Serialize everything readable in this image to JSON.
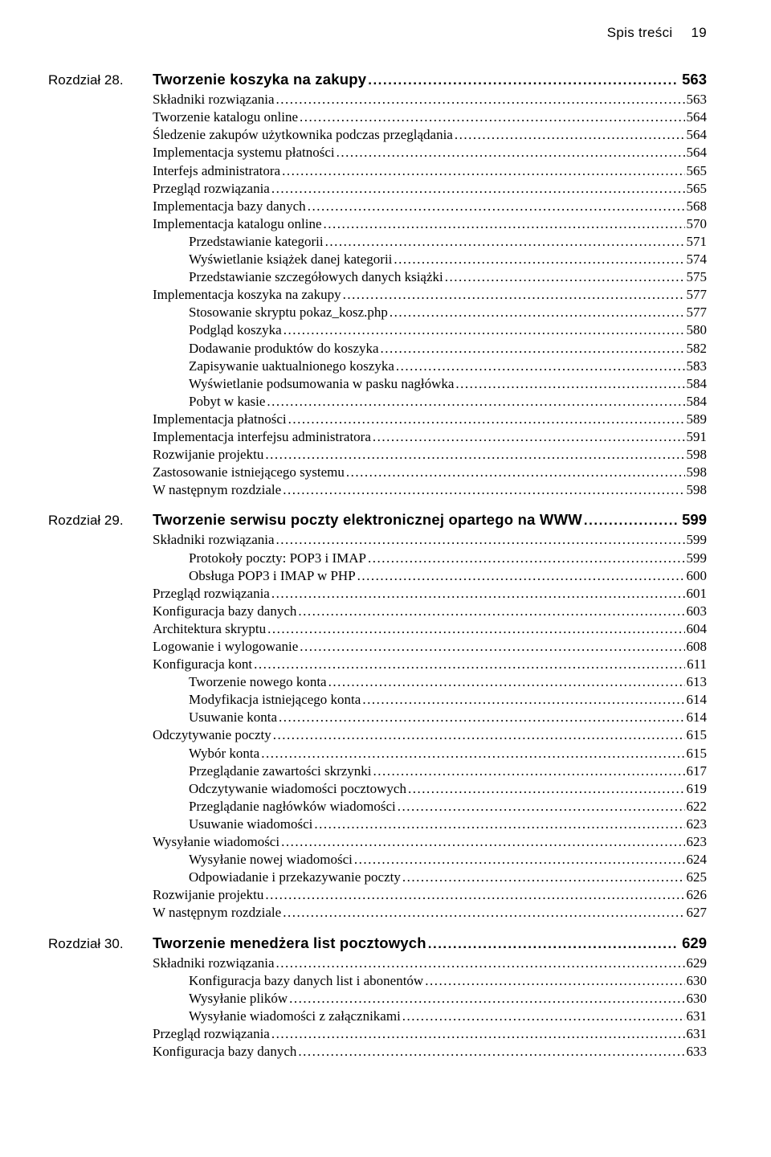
{
  "header": {
    "label": "Spis treści",
    "page": "19"
  },
  "chapters": [
    {
      "label": "Rozdział 28.",
      "title": "Tworzenie koszyka na zakupy",
      "page": "563",
      "entries": [
        {
          "t": "Składniki rozwiązania",
          "p": "563",
          "lvl": 0
        },
        {
          "t": "Tworzenie katalogu online",
          "p": "564",
          "lvl": 0
        },
        {
          "t": "Śledzenie zakupów użytkownika podczas przeglądania",
          "p": "564",
          "lvl": 0
        },
        {
          "t": "Implementacja systemu płatności",
          "p": "564",
          "lvl": 0
        },
        {
          "t": "Interfejs administratora",
          "p": "565",
          "lvl": 0
        },
        {
          "t": "Przegląd rozwiązania",
          "p": "565",
          "lvl": 0
        },
        {
          "t": "Implementacja bazy danych",
          "p": "568",
          "lvl": 0
        },
        {
          "t": "Implementacja katalogu online",
          "p": "570",
          "lvl": 0
        },
        {
          "t": "Przedstawianie kategorii",
          "p": "571",
          "lvl": 1
        },
        {
          "t": "Wyświetlanie książek danej kategorii",
          "p": "574",
          "lvl": 1
        },
        {
          "t": "Przedstawianie szczegółowych danych książki",
          "p": "575",
          "lvl": 1
        },
        {
          "t": "Implementacja koszyka na zakupy",
          "p": "577",
          "lvl": 0
        },
        {
          "t": "Stosowanie skryptu pokaz_kosz.php",
          "p": "577",
          "lvl": 1
        },
        {
          "t": "Podgląd koszyka",
          "p": "580",
          "lvl": 1
        },
        {
          "t": "Dodawanie produktów do koszyka",
          "p": "582",
          "lvl": 1
        },
        {
          "t": "Zapisywanie uaktualnionego koszyka",
          "p": "583",
          "lvl": 1
        },
        {
          "t": "Wyświetlanie podsumowania w pasku nagłówka",
          "p": "584",
          "lvl": 1
        },
        {
          "t": "Pobyt w kasie",
          "p": "584",
          "lvl": 1
        },
        {
          "t": "Implementacja płatności",
          "p": "589",
          "lvl": 0
        },
        {
          "t": "Implementacja interfejsu administratora",
          "p": "591",
          "lvl": 0
        },
        {
          "t": "Rozwijanie projektu",
          "p": "598",
          "lvl": 0
        },
        {
          "t": "Zastosowanie istniejącego systemu",
          "p": "598",
          "lvl": 0
        },
        {
          "t": "W następnym rozdziale",
          "p": "598",
          "lvl": 0
        }
      ]
    },
    {
      "label": "Rozdział 29.",
      "title": "Tworzenie serwisu poczty elektronicznej opartego na WWW",
      "page": "599",
      "entries": [
        {
          "t": "Składniki rozwiązania",
          "p": "599",
          "lvl": 0
        },
        {
          "t": "Protokoły poczty: POP3 i IMAP",
          "p": "599",
          "lvl": 1
        },
        {
          "t": "Obsługa POP3 i IMAP w PHP",
          "p": "600",
          "lvl": 1
        },
        {
          "t": "Przegląd rozwiązania",
          "p": "601",
          "lvl": 0
        },
        {
          "t": "Konfiguracja bazy danych",
          "p": "603",
          "lvl": 0
        },
        {
          "t": "Architektura skryptu",
          "p": "604",
          "lvl": 0
        },
        {
          "t": "Logowanie i wylogowanie",
          "p": "608",
          "lvl": 0
        },
        {
          "t": "Konfiguracja kont",
          "p": "611",
          "lvl": 0
        },
        {
          "t": "Tworzenie nowego konta",
          "p": "613",
          "lvl": 1
        },
        {
          "t": "Modyfikacja istniejącego konta",
          "p": "614",
          "lvl": 1
        },
        {
          "t": "Usuwanie konta",
          "p": "614",
          "lvl": 1
        },
        {
          "t": "Odczytywanie poczty",
          "p": "615",
          "lvl": 0
        },
        {
          "t": "Wybór konta",
          "p": "615",
          "lvl": 1
        },
        {
          "t": "Przeglądanie zawartości skrzynki",
          "p": "617",
          "lvl": 1
        },
        {
          "t": "Odczytywanie wiadomości pocztowych",
          "p": "619",
          "lvl": 1
        },
        {
          "t": "Przeglądanie nagłówków wiadomości",
          "p": "622",
          "lvl": 1
        },
        {
          "t": "Usuwanie wiadomości",
          "p": "623",
          "lvl": 1
        },
        {
          "t": "Wysyłanie wiadomości",
          "p": "623",
          "lvl": 0
        },
        {
          "t": "Wysyłanie nowej wiadomości",
          "p": "624",
          "lvl": 1
        },
        {
          "t": "Odpowiadanie i przekazywanie poczty",
          "p": "625",
          "lvl": 1
        },
        {
          "t": "Rozwijanie projektu",
          "p": "626",
          "lvl": 0
        },
        {
          "t": "W następnym rozdziale",
          "p": "627",
          "lvl": 0
        }
      ]
    },
    {
      "label": "Rozdział 30.",
      "title": "Tworzenie menedżera list pocztowych",
      "page": "629",
      "entries": [
        {
          "t": "Składniki rozwiązania",
          "p": "629",
          "lvl": 0
        },
        {
          "t": "Konfiguracja bazy danych list i abonentów",
          "p": "630",
          "lvl": 1
        },
        {
          "t": "Wysyłanie plików",
          "p": "630",
          "lvl": 1
        },
        {
          "t": "Wysyłanie wiadomości z załącznikami",
          "p": "631",
          "lvl": 1
        },
        {
          "t": "Przegląd rozwiązania",
          "p": "631",
          "lvl": 0
        },
        {
          "t": "Konfiguracja bazy danych",
          "p": "633",
          "lvl": 0
        }
      ]
    }
  ]
}
